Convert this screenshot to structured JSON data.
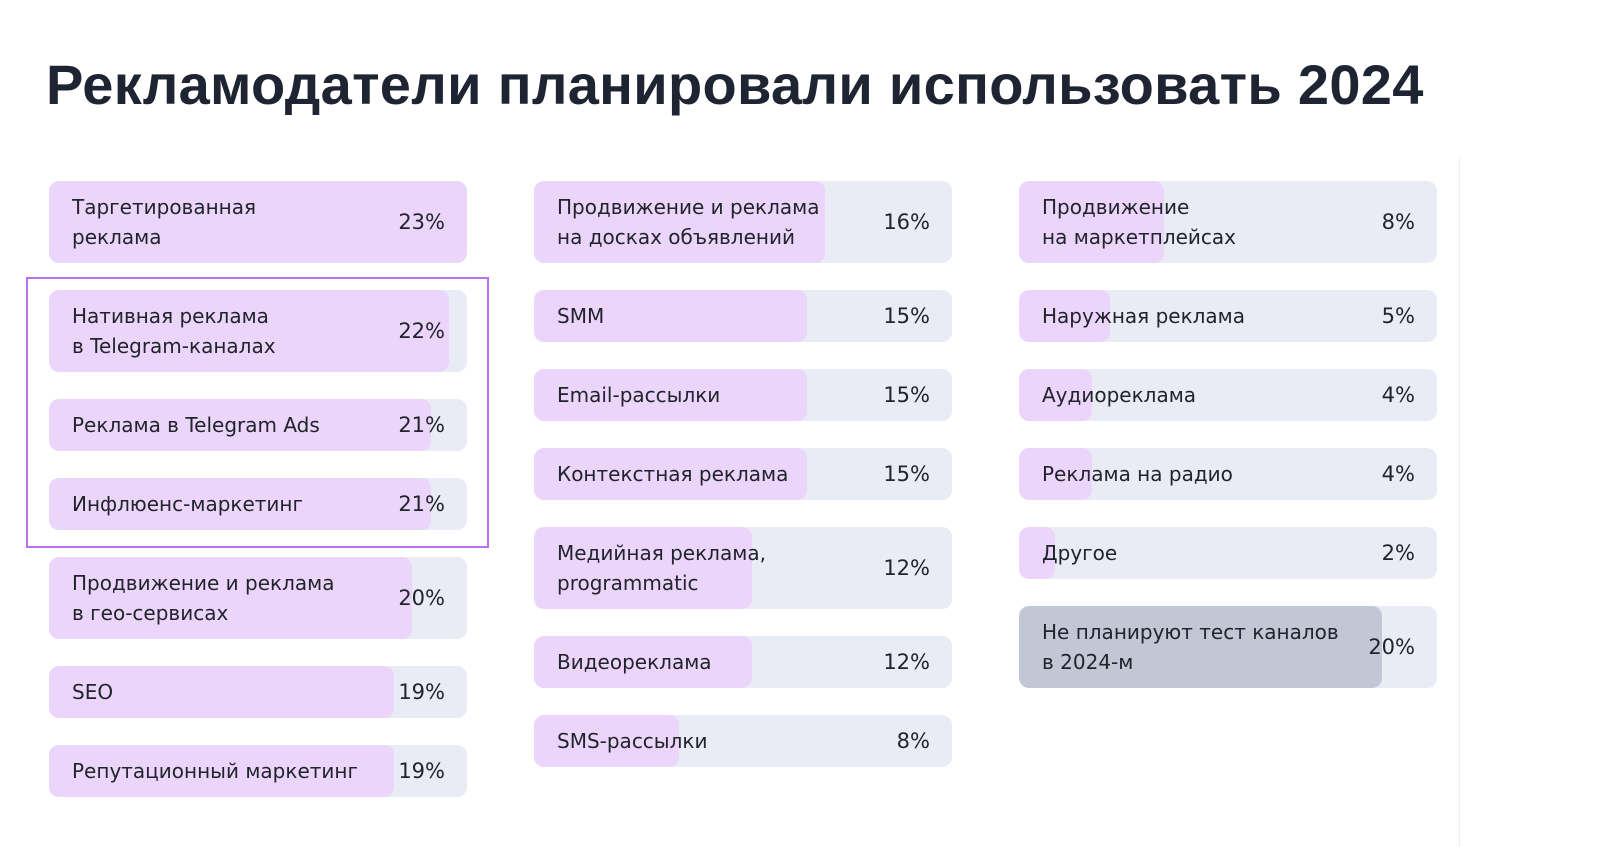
{
  "title": "Рекламодатели планировали использовать 2024",
  "colors": {
    "fill": "#ecd5fb",
    "track": "#e9ebf5",
    "fill_none": "#c2c7d5",
    "highlight": "#b86ff0",
    "text": "#1f2433"
  },
  "chart_data": {
    "type": "bar",
    "orientation": "horizontal",
    "unit": "%",
    "highlighted": [
      "Нативная реклама\nв Telegram-каналах",
      "Реклама в Telegram Ads",
      "Инфлюенс-маркетинг"
    ],
    "columns": [
      [
        {
          "label": "Таргетированная\nреклама",
          "value": 23,
          "text": "23%"
        },
        {
          "label": "Нативная реклама\nв Telegram-каналах",
          "value": 22,
          "text": "22%"
        },
        {
          "label": "Реклама в Telegram Ads",
          "value": 21,
          "text": "21%"
        },
        {
          "label": "Инфлюенс-маркетинг",
          "value": 21,
          "text": "21%"
        },
        {
          "label": "Продвижение и реклама\nв гео-сервисах",
          "value": 20,
          "text": "20%"
        },
        {
          "label": "SEO",
          "value": 19,
          "text": "19%"
        },
        {
          "label": "Репутационный маркетинг",
          "value": 19,
          "text": "19%"
        }
      ],
      [
        {
          "label": "Продвижение и реклама\nна досках объявлений",
          "value": 16,
          "text": "16%"
        },
        {
          "label": "SMM",
          "value": 15,
          "text": "15%"
        },
        {
          "label": "Email-рассылки",
          "value": 15,
          "text": "15%"
        },
        {
          "label": "Контекстная реклама",
          "value": 15,
          "text": "15%"
        },
        {
          "label": "Медийная реклама,\nprogrammatic",
          "value": 12,
          "text": "12%"
        },
        {
          "label": "Видеореклама",
          "value": 12,
          "text": "12%"
        },
        {
          "label": "SMS-рассылки",
          "value": 8,
          "text": "8%"
        }
      ],
      [
        {
          "label": "Продвижение\nна маркетплейсах",
          "value": 8,
          "text": "8%"
        },
        {
          "label": "Наружная реклама",
          "value": 5,
          "text": "5%"
        },
        {
          "label": "Аудиореклама",
          "value": 4,
          "text": "4%"
        },
        {
          "label": "Реклама на радио",
          "value": 4,
          "text": "4%"
        },
        {
          "label": "Другое",
          "value": 2,
          "text": "2%"
        },
        {
          "label": "Не планируют тест каналов\nв 2024-м",
          "value": 20,
          "text": "20%",
          "style": "gray"
        }
      ]
    ]
  }
}
